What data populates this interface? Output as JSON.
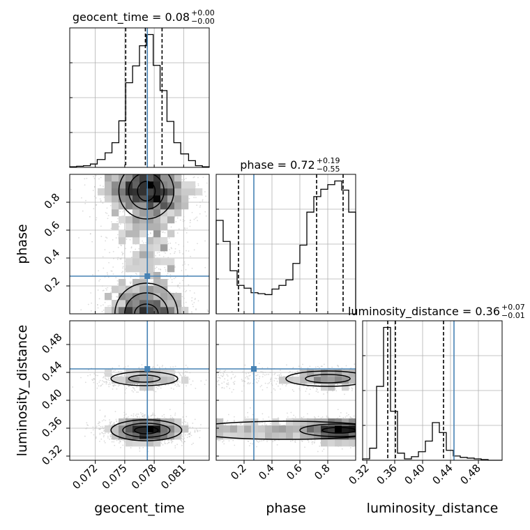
{
  "figure": {
    "type": "corner plot"
  },
  "colors": {
    "truth": "#4682b4",
    "hist": "#000000",
    "quantile": "#000000",
    "grid": "#b0b0b0",
    "points": "#bdbdbd",
    "density": "#000000"
  },
  "chart_data": {
    "type": "corner",
    "parameters": [
      {
        "name": "geocent_time",
        "range": [
          0.0694,
          0.0836
        ],
        "ticks": [
          0.072,
          0.075,
          0.078,
          0.081
        ],
        "tick_labels": [
          "0.072",
          "0.075",
          "0.078",
          "0.081"
        ],
        "truth": 0.0773,
        "quantiles": [
          0.0751,
          0.0771,
          0.0788
        ]
      },
      {
        "name": "phase",
        "range": [
          0.0,
          1.0
        ],
        "ticks": [
          0.2,
          0.4,
          0.6,
          0.8
        ],
        "tick_labels": [
          "0.2",
          "0.4",
          "0.6",
          "0.8"
        ],
        "truth": 0.27,
        "quantiles": [
          0.16,
          0.72,
          0.91
        ]
      },
      {
        "name": "luminosity_distance",
        "range": [
          0.314,
          0.514
        ],
        "ticks": [
          0.32,
          0.36,
          0.4,
          0.44,
          0.48
        ],
        "tick_labels": [
          "0.32",
          "0.36",
          "0.40",
          "0.44",
          "0.48"
        ],
        "truth": 0.445,
        "quantiles": [
          0.35,
          0.361,
          0.43
        ]
      }
    ],
    "titles": [
      {
        "main": "geocent_time = 0.08",
        "sup": "+0.00",
        "sub": "−0.00"
      },
      {
        "main": "phase = 0.72",
        "sup": "+0.19",
        "sub": "−0.55"
      },
      {
        "main": "luminosity_distance = 0.36",
        "sup": "+0.07",
        "sub": "−0.01"
      }
    ],
    "axis_labels": {
      "x": [
        "geocent_time",
        "phase",
        "luminosity_distance"
      ],
      "y": [
        "phase",
        "luminosity_distance"
      ]
    },
    "histograms": [
      {
        "param": "geocent_time",
        "bin_edges": [
          0.0694,
          0.0701,
          0.0708,
          0.0715,
          0.0722,
          0.073,
          0.0737,
          0.0744,
          0.0751,
          0.0758,
          0.0765,
          0.0772,
          0.0779,
          0.0786,
          0.0793,
          0.08,
          0.0807,
          0.0815,
          0.0822,
          0.0829,
          0.0836
        ],
        "counts": [
          1,
          2,
          3,
          6,
          14,
          26,
          44,
          83,
          151,
          181,
          217,
          237,
          182,
          137,
          82,
          44,
          24,
          12,
          3,
          1
        ]
      },
      {
        "param": "phase",
        "bin_edges": [
          0.0,
          0.05,
          0.1,
          0.15,
          0.2,
          0.25,
          0.3,
          0.35,
          0.4,
          0.45,
          0.5,
          0.55,
          0.6,
          0.65,
          0.7,
          0.75,
          0.8,
          0.85,
          0.9,
          0.95,
          1.0
        ],
        "counts": [
          102,
          79,
          47,
          31,
          28,
          23,
          22,
          21,
          27,
          31,
          37,
          55,
          75,
          111,
          128,
          136,
          141,
          145,
          135,
          111
        ]
      },
      {
        "param": "luminosity_distance",
        "bin_edges": [
          0.314,
          0.324,
          0.334,
          0.344,
          0.354,
          0.364,
          0.374,
          0.384,
          0.394,
          0.404,
          0.414,
          0.424,
          0.434,
          0.444,
          0.454,
          0.464,
          0.474,
          0.484,
          0.494,
          0.504,
          0.514
        ],
        "counts": [
          2,
          17,
          104,
          187,
          69,
          10,
          2,
          5,
          12,
          27,
          53,
          39,
          14,
          6,
          4,
          3,
          2,
          1,
          0,
          0
        ]
      }
    ],
    "density_2d": [
      {
        "x": "geocent_time",
        "y": "phase",
        "description": "points densest near geocent_time 0.077 at phase 0.8–0.95 and 0.0–0.2, waist near phase 0.3–0.4"
      },
      {
        "x": "geocent_time",
        "y": "luminosity_distance",
        "description": "two modes at luminosity_distance ≈ 0.355 (strong) and ≈ 0.43 (weaker), centred at geocent_time ≈ 0.077"
      },
      {
        "x": "phase",
        "y": "luminosity_distance",
        "description": "two horizontal bands at luminosity_distance ≈ 0.355 and ≈ 0.43, denser at phase 0.7–1.0"
      }
    ],
    "grid": true
  }
}
